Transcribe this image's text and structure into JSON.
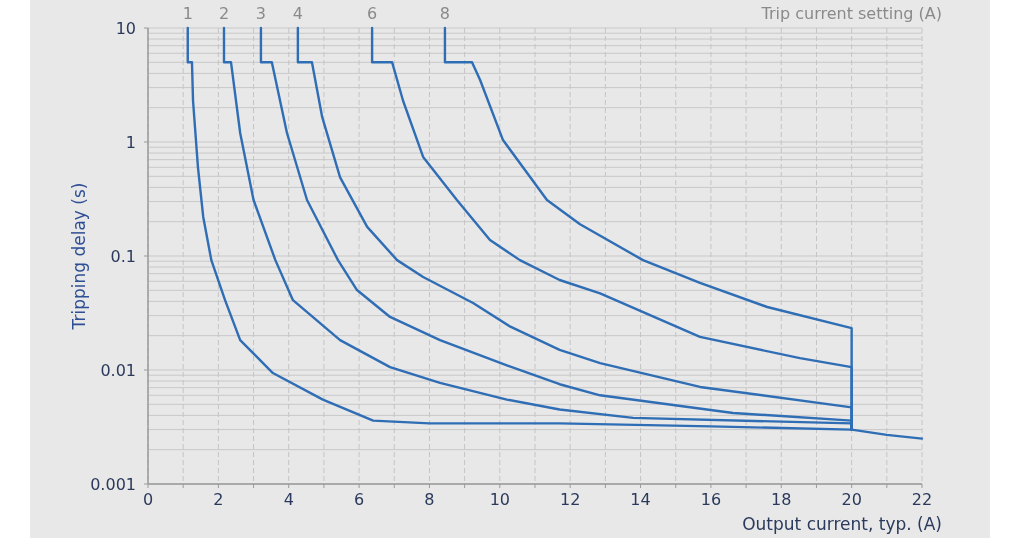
{
  "chart_data": {
    "type": "line",
    "xlabel": "Output current, typ. (A)",
    "ylabel": "Tripping delay (s)",
    "legend_title": "Trip current setting (A)",
    "xlim": [
      0,
      22
    ],
    "xticks": [
      0,
      2,
      4,
      6,
      8,
      10,
      12,
      14,
      16,
      18,
      20,
      22
    ],
    "ylim": [
      0.001,
      10
    ],
    "yticks": [
      0.001,
      0.01,
      0.1,
      1,
      10
    ],
    "log": true,
    "grid": true,
    "series": [
      {
        "name": "1",
        "color": "#2f6db5",
        "x": [
          1.13,
          1.13,
          1.25,
          1.28,
          1.42,
          1.57,
          1.8,
          2.19,
          2.62,
          3.55,
          4.97,
          6.4,
          8,
          11.7,
          16,
          20,
          21,
          22
        ],
        "values": [
          10,
          5,
          5,
          2.3,
          0.6,
          0.22,
          0.092,
          0.041,
          0.0183,
          0.0094,
          0.0055,
          0.0036,
          0.0034,
          0.0034,
          0.0032,
          0.003,
          0.0027,
          0.0025
        ]
      },
      {
        "name": "2",
        "color": "#2f6db5",
        "x": [
          2.16,
          2.16,
          2.36,
          2.62,
          3.0,
          3.62,
          4.12,
          5.46,
          6.88,
          8.3,
          10.2,
          11.7,
          13.79,
          20,
          20
        ],
        "values": [
          10,
          5,
          5,
          1.2,
          0.31,
          0.092,
          0.041,
          0.0183,
          0.0106,
          0.0077,
          0.0055,
          0.0045,
          0.0038,
          0.0034,
          0.003
        ]
      },
      {
        "name": "3",
        "color": "#2f6db5",
        "x": [
          3.21,
          3.21,
          3.52,
          3.95,
          4.52,
          5.4,
          5.94,
          6.88,
          8.3,
          10.2,
          11.7,
          12.85,
          16.63,
          20,
          20
        ],
        "values": [
          10,
          5,
          5,
          1.2,
          0.31,
          0.092,
          0.0503,
          0.0292,
          0.0183,
          0.011,
          0.0075,
          0.006,
          0.0042,
          0.0036,
          0.003
        ]
      },
      {
        "name": "4",
        "color": "#2f6db5",
        "x": [
          4.26,
          4.26,
          4.66,
          4.95,
          5.46,
          6.23,
          7.08,
          7.82,
          9.24,
          10.3,
          11.7,
          12.85,
          15.69,
          20,
          20
        ],
        "values": [
          10,
          5,
          5,
          1.66,
          0.49,
          0.18,
          0.092,
          0.0655,
          0.0387,
          0.024,
          0.015,
          0.0115,
          0.0071,
          0.0047,
          0.003
        ]
      },
      {
        "name": "6",
        "color": "#2f6db5",
        "x": [
          6.37,
          6.37,
          6.94,
          7.25,
          7.82,
          8.78,
          9.72,
          10.57,
          11.7,
          12.85,
          15.69,
          18.53,
          20,
          20
        ],
        "values": [
          10,
          5,
          5,
          2.3,
          0.74,
          0.31,
          0.138,
          0.092,
          0.0616,
          0.047,
          0.0195,
          0.0127,
          0.0106,
          0.003
        ]
      },
      {
        "name": "8",
        "color": "#2f6db5",
        "x": [
          8.44,
          8.44,
          9.21,
          9.44,
          10.09,
          11.34,
          12.28,
          14.07,
          15.69,
          17.6,
          20,
          20
        ],
        "values": [
          10,
          5,
          5,
          3.5,
          1.04,
          0.31,
          0.19,
          0.092,
          0.058,
          0.0357,
          0.0233,
          0.003
        ]
      }
    ]
  }
}
